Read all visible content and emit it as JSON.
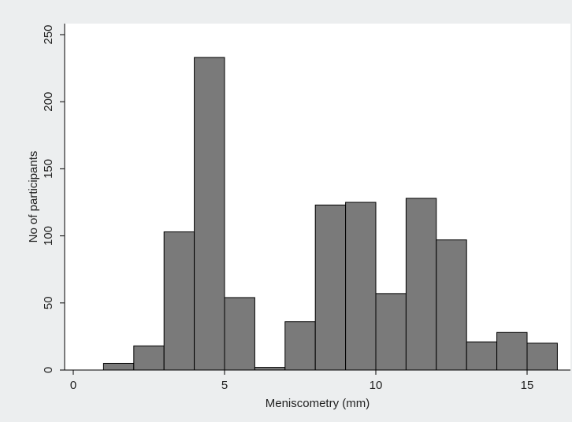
{
  "chart_data": {
    "type": "bar",
    "subtype": "histogram",
    "title": "",
    "xlabel": "Meniscometry (mm)",
    "ylabel": "No of participants",
    "xlim": [
      -0.5,
      16
    ],
    "ylim": [
      0,
      260
    ],
    "x_ticks": [
      0,
      5,
      10,
      15
    ],
    "y_ticks": [
      0,
      50,
      100,
      150,
      200,
      250
    ],
    "bins": [
      {
        "x0": 1,
        "x1": 2,
        "value": 5
      },
      {
        "x0": 2,
        "x1": 3,
        "value": 18
      },
      {
        "x0": 3,
        "x1": 4,
        "value": 103
      },
      {
        "x0": 4,
        "x1": 5,
        "value": 233
      },
      {
        "x0": 5,
        "x1": 6,
        "value": 54
      },
      {
        "x0": 6,
        "x1": 7,
        "value": 2
      },
      {
        "x0": 7,
        "x1": 8,
        "value": 36
      },
      {
        "x0": 8,
        "x1": 9,
        "value": 123
      },
      {
        "x0": 9,
        "x1": 10,
        "value": 125
      },
      {
        "x0": 10,
        "x1": 11,
        "value": 57
      },
      {
        "x0": 11,
        "x1": 12,
        "value": 128
      },
      {
        "x0": 12,
        "x1": 13,
        "value": 97
      },
      {
        "x0": 13,
        "x1": 14,
        "value": 21
      },
      {
        "x0": 14,
        "x1": 15,
        "value": 28
      },
      {
        "x0": 15,
        "x1": 16,
        "value": 20
      }
    ],
    "grid": false,
    "bar_color": "#7a7a7a",
    "bar_edge_color": "#000000",
    "background_color": "#eceeef",
    "plot_background_color": "#ffffff"
  }
}
